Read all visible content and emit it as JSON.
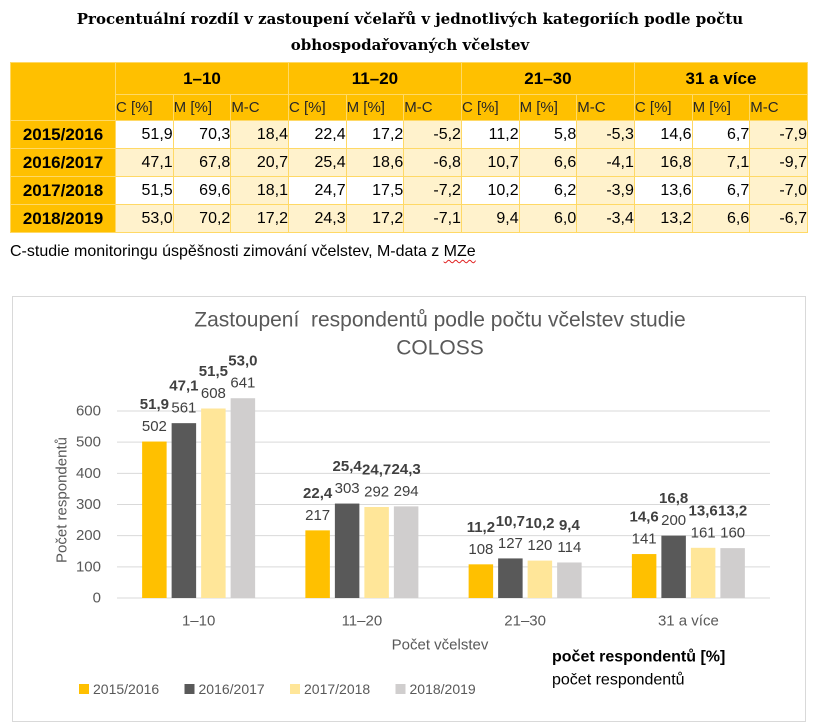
{
  "table": {
    "title_lines": [
      "Procentuální rozdíl v zastoupení včelařů v jednotlivých kategoriích podle počtu",
      "obhospodařovaných včelstev"
    ],
    "groups": [
      "1–10",
      "11–20",
      "21–30",
      "31 a více"
    ],
    "subheaders": [
      "C [%]",
      "M [%]",
      "M-C"
    ],
    "rows": [
      {
        "year": "2015/2016",
        "values": [
          [
            "51,9",
            "70,3",
            "18,4"
          ],
          [
            "22,4",
            "17,2",
            "-5,2"
          ],
          [
            "11,2",
            "5,8",
            "-5,3"
          ],
          [
            "14,6",
            "6,7",
            "-7,9"
          ]
        ]
      },
      {
        "year": "2016/2017",
        "values": [
          [
            "47,1",
            "67,8",
            "20,7"
          ],
          [
            "25,4",
            "18,6",
            "-6,8"
          ],
          [
            "10,7",
            "6,6",
            "-4,1"
          ],
          [
            "16,8",
            "7,1",
            "-9,7"
          ]
        ]
      },
      {
        "year": "2017/2018",
        "values": [
          [
            "51,5",
            "69,6",
            "18,1"
          ],
          [
            "24,7",
            "17,5",
            "-7,2"
          ],
          [
            "10,2",
            "6,2",
            "-3,9"
          ],
          [
            "13,6",
            "6,7",
            "-7,0"
          ]
        ]
      },
      {
        "year": "2018/2019",
        "values": [
          [
            "53,0",
            "70,2",
            "17,2"
          ],
          [
            "24,3",
            "17,2",
            "-7,1"
          ],
          [
            "9,4",
            "6,0",
            "-3,4"
          ],
          [
            "13,2",
            "6,6",
            "-6,7"
          ]
        ]
      }
    ],
    "header_color": "#FFC000",
    "band_color": "#FFF2CC"
  },
  "footnote": {
    "text": "C-studie monitoringu úspěšnosti zimování včelstev, M-data z ",
    "flagged_word": "MZe"
  },
  "chart_data": {
    "type": "bar",
    "title_lines": [
      "Zastoupení  respondentů podle počtu včelstev studie",
      "COLOSS"
    ],
    "categories": [
      "1–10",
      "11–20",
      "21–30",
      "31 a více"
    ],
    "xlabel": "Počet včelstev",
    "ylabel": "Počet respondentů",
    "ylim": [
      0,
      600
    ],
    "yticks": [
      0,
      100,
      200,
      300,
      400,
      500,
      600
    ],
    "grid": true,
    "legend": "bottom",
    "series": [
      {
        "name": "2015/2016",
        "color": "#FFC000",
        "values": [
          502,
          217,
          108,
          141
        ],
        "percent_labels": [
          "51,9",
          "22,4",
          "11,2",
          "14,6"
        ]
      },
      {
        "name": "2016/2017",
        "color": "#595959",
        "values": [
          561,
          303,
          127,
          200
        ],
        "percent_labels": [
          "47,1",
          "25,4",
          "10,7",
          "16,8"
        ]
      },
      {
        "name": "2017/2018",
        "color": "#FFE699",
        "values": [
          608,
          292,
          120,
          161
        ],
        "percent_labels": [
          "51,5",
          "24,7",
          "10,2",
          "13,6"
        ]
      },
      {
        "name": "2018/2019",
        "color": "#D0CECE",
        "values": [
          641,
          294,
          114,
          160
        ],
        "percent_labels": [
          "53,0",
          "24,3",
          "9,4",
          "13,2"
        ]
      }
    ],
    "label_key": {
      "bold_line": "počet respondentů [%]",
      "plain_line": "počet respondentů"
    }
  }
}
